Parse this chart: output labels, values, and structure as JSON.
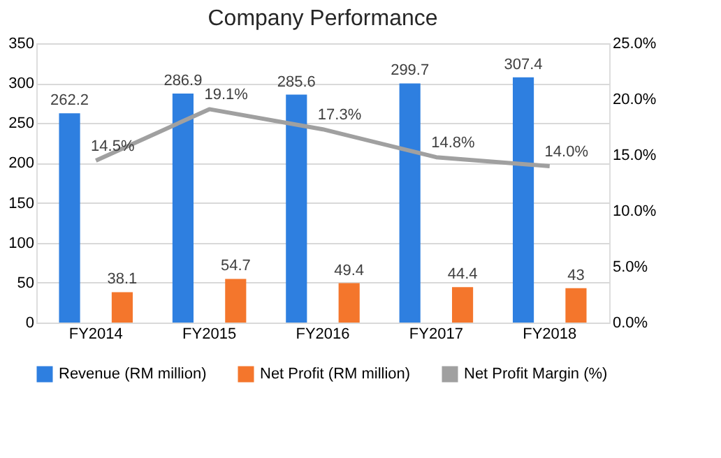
{
  "chart_data": {
    "type": "bar",
    "title": "Company Performance",
    "categories": [
      "FY2014",
      "FY2015",
      "FY2016",
      "FY2017",
      "FY2018"
    ],
    "series": [
      {
        "name": "Revenue (RM million)",
        "color": "#2e7fe0",
        "values": [
          262.2,
          286.9,
          285.6,
          299.7,
          307.4
        ]
      },
      {
        "name": "Net Profit (RM million)",
        "color": "#f4762c",
        "values": [
          38.1,
          54.7,
          49.4,
          44.4,
          43
        ]
      },
      {
        "name": "Net Profit Margin (%)",
        "color": "#a0a0a0",
        "type": "line",
        "axis": "y2",
        "values": [
          14.5,
          19.1,
          17.3,
          14.8,
          14.0
        ],
        "value_labels": [
          "14.5%",
          "19.1%",
          "17.3%",
          "14.8%",
          "14.0%"
        ]
      }
    ],
    "data_labels": true,
    "ylim": [
      0,
      350
    ],
    "yticks": [
      0,
      50,
      100,
      150,
      200,
      250,
      300,
      350
    ],
    "y2lim": [
      0,
      25
    ],
    "y2ticks": [
      {
        "value": 0,
        "label": "0.0%"
      },
      {
        "value": 5,
        "label": "5.0%"
      },
      {
        "value": 10,
        "label": "10.0%"
      },
      {
        "value": 15,
        "label": "15.0%"
      },
      {
        "value": 20,
        "label": "20.0%"
      },
      {
        "value": 25,
        "label": "25.0%"
      }
    ],
    "grid": "y",
    "legend": "bottom",
    "marker": "none"
  }
}
